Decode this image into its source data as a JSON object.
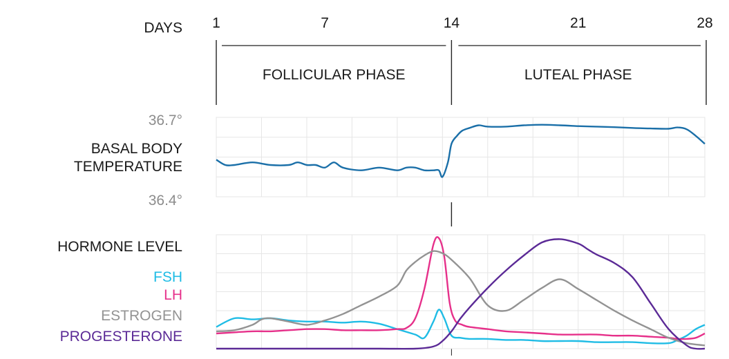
{
  "chart_data": [
    {
      "type": "line",
      "title": "",
      "header": {
        "days_label": "DAYS",
        "day_ticks": [
          "1",
          "7",
          "14",
          "21",
          "28"
        ],
        "day_tick_values": [
          1,
          7,
          14,
          21,
          28
        ],
        "phases": [
          {
            "label": "FOLLICULAR PHASE",
            "range": [
              1,
              14
            ]
          },
          {
            "label": "LUTEAL PHASE",
            "range": [
              14,
              28
            ]
          }
        ]
      },
      "panel": "basal-body-temperature",
      "ylabel_lines": [
        "BASAL BODY",
        "TEMPERATURE"
      ],
      "ytick_labels": [
        "36.7°",
        "36.4°"
      ],
      "ylim": [
        36.4,
        36.7
      ],
      "xlim": [
        1,
        28
      ],
      "grid": true,
      "series": [
        {
          "color": "#1a6fa8",
          "x": [
            1,
            1.5,
            2,
            3,
            4,
            5,
            5.5,
            6,
            6.5,
            7,
            7.5,
            8,
            9,
            10,
            11,
            11.5,
            12,
            12.5,
            13,
            13.3,
            13.5,
            13.8,
            14,
            14.3,
            14.6,
            15,
            15.5,
            16,
            17,
            18,
            19,
            20,
            21,
            22,
            23,
            24,
            25,
            26,
            26.5,
            27,
            27.5,
            28
          ],
          "y": [
            36.54,
            36.52,
            36.52,
            36.53,
            36.52,
            36.52,
            36.53,
            36.52,
            36.52,
            36.51,
            36.53,
            36.51,
            36.5,
            36.51,
            36.5,
            36.51,
            36.51,
            36.5,
            36.5,
            36.5,
            36.475,
            36.53,
            36.6,
            36.63,
            36.65,
            36.66,
            36.67,
            36.665,
            36.665,
            36.67,
            36.672,
            36.67,
            36.667,
            36.665,
            36.663,
            36.66,
            36.658,
            36.657,
            36.662,
            36.655,
            36.63,
            36.6
          ]
        }
      ]
    },
    {
      "type": "line",
      "title": "",
      "panel": "hormone-level",
      "ylabel": "HORMONE LEVEL",
      "ylim": [
        0,
        100
      ],
      "xlim": [
        1,
        28
      ],
      "grid": true,
      "legend_position": "left",
      "series": [
        {
          "name": "FSH",
          "color": "#1fbce5",
          "x": [
            1,
            2,
            3,
            4,
            5,
            6,
            7,
            8,
            9,
            10,
            11,
            12,
            12.5,
            13,
            13.3,
            13.6,
            14,
            14.5,
            15,
            16,
            17,
            18,
            19,
            20,
            21,
            22,
            23,
            24,
            25,
            26,
            26.5,
            27,
            27.5,
            28
          ],
          "y": [
            20,
            28,
            27,
            28,
            26,
            25,
            25,
            24,
            25,
            23,
            18,
            13,
            10,
            25,
            36,
            28,
            12,
            10,
            9,
            9,
            8,
            8,
            7,
            7,
            7,
            6,
            6,
            6,
            5,
            5,
            8,
            12,
            18,
            22
          ]
        },
        {
          "name": "LH",
          "color": "#e6308a",
          "x": [
            1,
            2,
            3,
            4,
            5,
            6,
            7,
            8,
            9,
            10,
            11,
            11.5,
            12,
            12.5,
            13,
            13.3,
            13.6,
            13.9,
            14.2,
            14.6,
            15,
            16,
            17,
            18,
            19,
            20,
            21,
            22,
            23,
            24,
            25,
            26,
            26.5,
            27,
            27.5,
            28
          ],
          "y": [
            14,
            15,
            16,
            16,
            17,
            18,
            18,
            17,
            17,
            17,
            18,
            19,
            28,
            55,
            96,
            102,
            85,
            42,
            26,
            22,
            20,
            18,
            16,
            15,
            14,
            13,
            13,
            13,
            12,
            12,
            11,
            10,
            9,
            9,
            10,
            14
          ]
        },
        {
          "name": "ESTROGEN",
          "color": "#939393",
          "x": [
            1,
            2,
            3,
            3.5,
            4,
            5,
            6,
            7,
            8,
            9,
            10,
            11,
            11.5,
            12,
            12.5,
            13,
            13.5,
            14,
            15,
            16,
            17,
            18,
            19,
            20,
            21,
            22,
            23,
            24,
            25,
            26,
            27,
            28
          ],
          "y": [
            16,
            17,
            22,
            27,
            28,
            25,
            22,
            26,
            32,
            40,
            48,
            58,
            72,
            80,
            86,
            90,
            88,
            82,
            65,
            40,
            35,
            45,
            56,
            64,
            55,
            45,
            35,
            26,
            18,
            10,
            5,
            3
          ]
        },
        {
          "name": "PROGESTERONE",
          "color": "#5b2a96",
          "x": [
            1,
            4,
            7,
            10,
            12,
            13,
            13.5,
            14,
            14.5,
            15,
            16,
            17,
            18,
            19,
            20,
            21,
            21.5,
            22,
            23,
            24,
            25,
            26,
            27,
            27.5,
            28
          ],
          "y": [
            0,
            0,
            0,
            0,
            0,
            2,
            7,
            16,
            28,
            38,
            56,
            72,
            86,
            98,
            101,
            97,
            92,
            87,
            79,
            66,
            42,
            18,
            3,
            0,
            0
          ]
        }
      ]
    }
  ]
}
